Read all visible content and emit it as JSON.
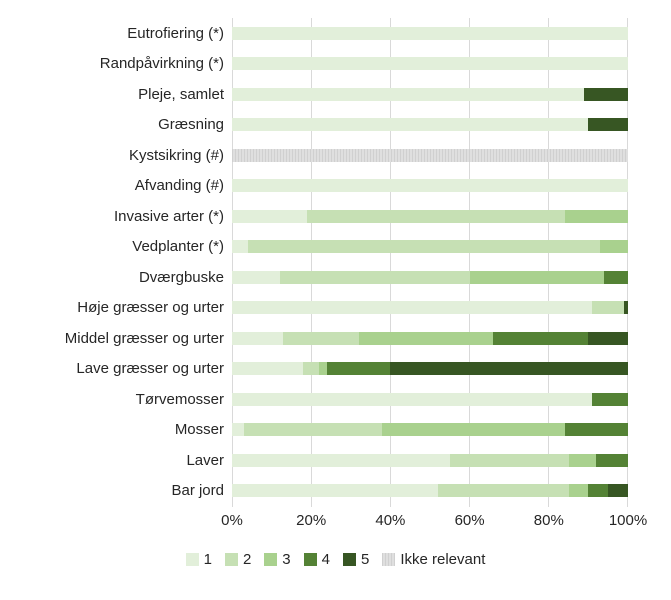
{
  "chart_data": {
    "type": "bar",
    "orientation": "horizontal-stacked",
    "title": "",
    "xlabel": "",
    "ylabel": "",
    "xlim": [
      0,
      100
    ],
    "grid": true,
    "legend_position": "bottom",
    "x_ticks": [
      "0%",
      "20%",
      "40%",
      "60%",
      "80%",
      "100%"
    ],
    "categories": [
      "Eutrofiering (*)",
      "Randpåvirkning (*)",
      "Pleje, samlet",
      "Græsning",
      "Kystsikring (#)",
      "Afvanding (#)",
      "Invasive arter (*)",
      "Vedplanter (*)",
      "Dværgbuske",
      "Høje græsser og urter",
      "Middel græsser og urter",
      "Lave græsser og urter",
      "Tørvemosser",
      "Mosser",
      "Laver",
      "Bar jord"
    ],
    "series": [
      {
        "name": "1",
        "color": "#E2EFDA",
        "values": [
          100,
          100,
          89,
          90,
          0,
          100,
          19,
          4,
          12,
          91,
          13,
          18,
          91,
          3,
          55,
          52
        ]
      },
      {
        "name": "2",
        "color": "#C6E0B4",
        "values": [
          0,
          0,
          0,
          0,
          0,
          0,
          65,
          89,
          48,
          8,
          19,
          4,
          0,
          35,
          30,
          33
        ]
      },
      {
        "name": "3",
        "color": "#A9D18E",
        "values": [
          0,
          0,
          0,
          0,
          0,
          0,
          16,
          7,
          34,
          0,
          34,
          2,
          0,
          46,
          7,
          5
        ]
      },
      {
        "name": "4",
        "color": "#548235",
        "values": [
          0,
          0,
          0,
          0,
          0,
          0,
          0,
          0,
          6,
          0,
          24,
          16,
          9,
          16,
          8,
          5
        ]
      },
      {
        "name": "5",
        "color": "#375623",
        "values": [
          0,
          0,
          11,
          10,
          0,
          0,
          0,
          0,
          0,
          1,
          10,
          60,
          0,
          0,
          0,
          5
        ]
      },
      {
        "name": "Ikke relevant",
        "color": "#D9D9D9",
        "pattern": true,
        "values": [
          0,
          0,
          0,
          0,
          100,
          0,
          0,
          0,
          0,
          0,
          0,
          0,
          0,
          0,
          0,
          0
        ]
      }
    ],
    "colors": {
      "gridline": "#D9D9D9",
      "text": "#262626"
    }
  }
}
